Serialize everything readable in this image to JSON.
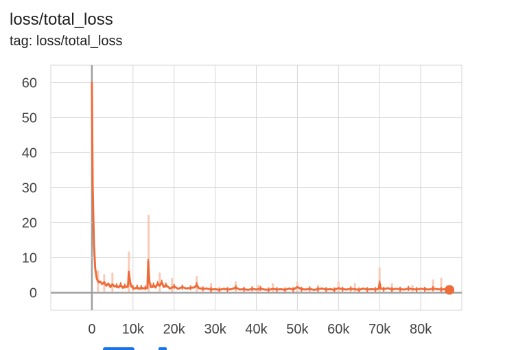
{
  "card": {
    "title": "loss/total_loss",
    "tag_line": "tag: loss/total_loss"
  },
  "colors": {
    "series": "#ef6c3a",
    "raw_series": "#f8cbb8",
    "grid": "#d6d6d6",
    "zero_axis": "#9e9e9e",
    "text": "#424242",
    "toolbar_accent": "#1a73e8"
  },
  "chart_data": {
    "type": "line",
    "title": "loss/total_loss",
    "xlabel": "",
    "ylabel": "",
    "xlim": [
      -10000,
      90000
    ],
    "ylim": [
      -5,
      65
    ],
    "x_ticks": [
      0,
      10000,
      20000,
      30000,
      40000,
      50000,
      60000,
      70000,
      80000
    ],
    "x_tick_labels": [
      "0",
      "10k",
      "20k",
      "30k",
      "40k",
      "50k",
      "60k",
      "70k",
      "80k"
    ],
    "y_ticks": [
      0,
      10,
      20,
      30,
      40,
      50,
      60
    ],
    "y_tick_labels": [
      "0",
      "10",
      "20",
      "30",
      "40",
      "50",
      "60"
    ],
    "grid": true,
    "legend": "none",
    "series": [
      {
        "smoothed": true,
        "x": [
          0,
          200,
          500,
          800,
          1200,
          1600,
          2000,
          2500,
          3000,
          3500,
          4000,
          4500,
          5000,
          5500,
          6000,
          6500,
          7000,
          7500,
          8000,
          8500,
          8800,
          9000,
          9300,
          9600,
          10000,
          10500,
          11000,
          11500,
          12000,
          12500,
          13000,
          13500,
          13700,
          14000,
          14300,
          14700,
          15000,
          15500,
          16000,
          16500,
          17000,
          17500,
          18000,
          19000,
          20000,
          21000,
          22000,
          23000,
          24000,
          25000,
          25500,
          26000,
          27000,
          28000,
          29000,
          30000,
          31000,
          32000,
          33000,
          34000,
          35000,
          36000,
          37000,
          38000,
          39000,
          40000,
          41000,
          42000,
          43000,
          44000,
          45000,
          46000,
          47000,
          48000,
          49000,
          50000,
          51000,
          52000,
          53000,
          54000,
          55000,
          56000,
          57000,
          58000,
          59000,
          60000,
          61000,
          62000,
          63000,
          64000,
          65000,
          66000,
          67000,
          68000,
          69000,
          69800,
          70000,
          70300,
          71000,
          72000,
          73000,
          74000,
          75000,
          76000,
          77000,
          78000,
          79000,
          80000,
          81000,
          82000,
          83000,
          84000,
          85000,
          86000,
          87000
        ],
        "y": [
          60,
          30,
          14,
          7,
          4,
          3,
          3.2,
          2.5,
          3,
          2,
          2.6,
          1.6,
          2.4,
          1.8,
          2,
          1.5,
          2.3,
          1.4,
          1.9,
          1.6,
          2.2,
          6,
          3,
          1.8,
          1.4,
          1.2,
          1.6,
          1.1,
          1.5,
          1.2,
          1.4,
          1.3,
          9,
          3,
          2,
          1.6,
          2.2,
          1.5,
          2.6,
          2,
          3,
          1.6,
          2.2,
          1.2,
          1.8,
          1.1,
          1.6,
          1.2,
          1.4,
          1.5,
          2.3,
          1.3,
          1.1,
          1.2,
          0.9,
          1,
          0.8,
          1.1,
          0.9,
          1,
          1.5,
          0.9,
          1,
          0.8,
          1.1,
          0.9,
          1.2,
          0.9,
          0.8,
          1.1,
          0.9,
          1,
          0.8,
          1.2,
          0.9,
          1.6,
          1,
          0.9,
          1.1,
          0.8,
          1,
          1.2,
          0.9,
          1,
          0.8,
          1.3,
          1,
          0.9,
          1.1,
          1,
          0.8,
          1.2,
          0.9,
          1,
          0.9,
          1.1,
          2.8,
          1.2,
          1,
          1.3,
          0.9,
          1.1,
          1,
          0.9,
          1.2,
          1,
          0.9,
          1.1,
          1,
          0.9,
          1.2,
          1,
          0.9,
          1,
          0.8
        ]
      },
      {
        "smoothed": false,
        "x": [
          1500,
          3000,
          5000,
          9000,
          13800,
          16500,
          19500,
          25500,
          29000,
          35000,
          40500,
          44000,
          50000,
          55000,
          60000,
          64000,
          70000,
          73000,
          78000,
          83000,
          85000
        ],
        "y": [
          6,
          5,
          5.5,
          11.5,
          22,
          5.5,
          4,
          4.5,
          2.5,
          3,
          2,
          2.5,
          3,
          2,
          3,
          2.5,
          7,
          2.5,
          2,
          3.5,
          4
        ]
      }
    ],
    "last_point": {
      "x": 87000,
      "y": 0.8
    }
  }
}
